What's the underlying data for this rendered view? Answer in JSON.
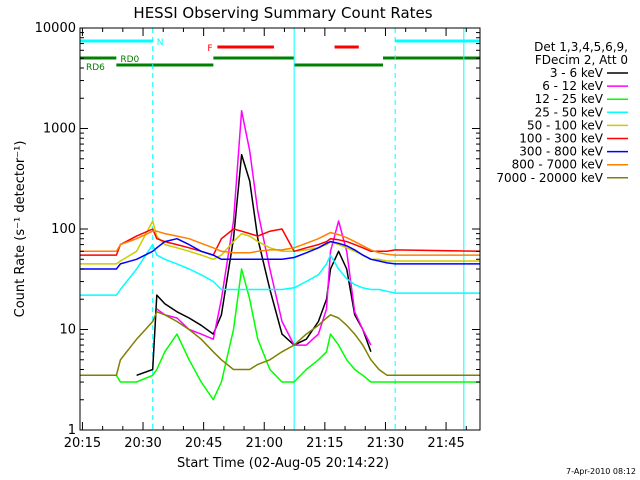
{
  "chart_data": {
    "type": "line",
    "title": "HESSI Observing Summary Count Rates",
    "xlabel": "Start Time (02-Aug-05 20:14:22)",
    "ylabel": "Count Rate (s⁻¹ detector⁻¹)",
    "x_unit": "minutes after 20:14:22",
    "xlim": [
      0,
      99
    ],
    "ylim": [
      1,
      10000
    ],
    "yscale": "log",
    "x_ticks": [
      "20:15",
      "20:30",
      "20:45",
      "21:00",
      "21:15",
      "21:30",
      "21:45"
    ],
    "x_tick_positions": [
      0.6,
      15.6,
      30.6,
      45.6,
      60.6,
      75.6,
      90.6
    ],
    "y_ticks": [
      "1",
      "10",
      "100",
      "1000",
      "10000"
    ],
    "y_tick_values": [
      1,
      10,
      100,
      1000,
      10000
    ],
    "legend_header": [
      "Det 1,3,4,5,6,9,",
      "FDecim 2, Att 0"
    ],
    "legend_position": "right",
    "timestamp": "7-Apr-2010 08:12",
    "flag_labels": {
      "night": "N",
      "flare": "F",
      "rd0": "RD0",
      "rd6": "RD6"
    },
    "flags": {
      "night": [
        [
          0,
          18
        ],
        [
          78,
          99
        ]
      ],
      "flare": [
        [
          34,
          48
        ],
        [
          63,
          69
        ]
      ],
      "rd0": [
        [
          0,
          9
        ],
        [
          33,
          53
        ],
        [
          75,
          99
        ]
      ],
      "rd6": [
        [
          9,
          33
        ],
        [
          53,
          75
        ]
      ]
    },
    "night_boundaries": [
      18,
      53,
      78,
      95
    ],
    "x_samples": [
      0,
      9,
      10,
      14,
      18,
      19,
      21,
      24,
      27,
      30,
      33,
      35,
      38,
      40,
      42,
      44,
      47,
      50,
      53,
      56,
      59,
      61,
      62,
      64,
      66,
      68,
      70,
      72,
      74,
      76,
      78,
      99
    ],
    "series": [
      {
        "name": "3 - 6 keV",
        "color": "#000000",
        "values": [
          null,
          null,
          null,
          3.5,
          4,
          22,
          18,
          15,
          13,
          11,
          9,
          14,
          80,
          550,
          300,
          80,
          25,
          9,
          7,
          8,
          12,
          20,
          40,
          60,
          40,
          14,
          10,
          6,
          null,
          null,
          null,
          null
        ]
      },
      {
        "name": "6 - 12 keV",
        "color": "#ff00ff",
        "values": [
          null,
          null,
          null,
          null,
          null,
          16,
          14,
          13,
          10,
          9,
          8,
          20,
          120,
          1500,
          600,
          150,
          40,
          12,
          7,
          7,
          9,
          16,
          60,
          120,
          60,
          15,
          10,
          7,
          null,
          null,
          null,
          null
        ]
      },
      {
        "name": "12 - 25 keV",
        "color": "#00ff00",
        "values": [
          3.5,
          3.5,
          3,
          3,
          3.5,
          4,
          6,
          9,
          5,
          3,
          2,
          3,
          10,
          40,
          20,
          8,
          4,
          3,
          3,
          4,
          5,
          6,
          9,
          7,
          5,
          4,
          3.5,
          3,
          3,
          3,
          3,
          3
        ]
      },
      {
        "name": "25 - 50 keV",
        "color": "#00ffff",
        "values": [
          22,
          22,
          25,
          40,
          70,
          55,
          50,
          45,
          40,
          35,
          30,
          25,
          25,
          25,
          25,
          25,
          25,
          25,
          26,
          30,
          35,
          45,
          55,
          40,
          32,
          28,
          26,
          25,
          25,
          24,
          23,
          23
        ]
      },
      {
        "name": "50 - 100 keV",
        "color": "#cccc00",
        "values": [
          45,
          45,
          48,
          60,
          120,
          85,
          70,
          65,
          60,
          55,
          50,
          55,
          75,
          90,
          85,
          75,
          65,
          60,
          60,
          62,
          65,
          70,
          75,
          70,
          65,
          60,
          55,
          50,
          50,
          48,
          48,
          48
        ]
      },
      {
        "name": "100 - 300 keV",
        "color": "#ff0000",
        "values": [
          55,
          55,
          70,
          85,
          100,
          80,
          75,
          70,
          65,
          60,
          55,
          80,
          100,
          95,
          90,
          85,
          95,
          100,
          60,
          65,
          70,
          75,
          80,
          78,
          75,
          70,
          65,
          60,
          60,
          60,
          62,
          60
        ]
      },
      {
        "name": "300 - 800 keV",
        "color": "#0000ff",
        "values": [
          40,
          40,
          45,
          50,
          60,
          65,
          75,
          80,
          70,
          60,
          55,
          50,
          50,
          50,
          50,
          50,
          50,
          50,
          52,
          58,
          65,
          72,
          75,
          72,
          68,
          62,
          55,
          50,
          48,
          46,
          45,
          45
        ]
      },
      {
        "name": "800 - 7000 keV",
        "color": "#ff8000",
        "values": [
          60,
          60,
          70,
          80,
          95,
          95,
          90,
          85,
          80,
          72,
          65,
          60,
          58,
          58,
          58,
          60,
          62,
          62,
          65,
          72,
          80,
          88,
          92,
          88,
          82,
          75,
          68,
          62,
          58,
          56,
          55,
          55
        ]
      },
      {
        "name": "7000 - 20000 keV",
        "color": "#808000",
        "values": [
          3.5,
          3.5,
          5,
          8,
          12,
          15,
          14,
          12,
          10,
          8,
          6,
          5,
          4,
          4,
          4,
          4.5,
          5,
          6,
          7,
          9,
          11,
          13,
          14,
          13,
          11,
          9,
          7,
          5,
          4,
          3.5,
          3.5,
          3.5
        ]
      }
    ]
  }
}
